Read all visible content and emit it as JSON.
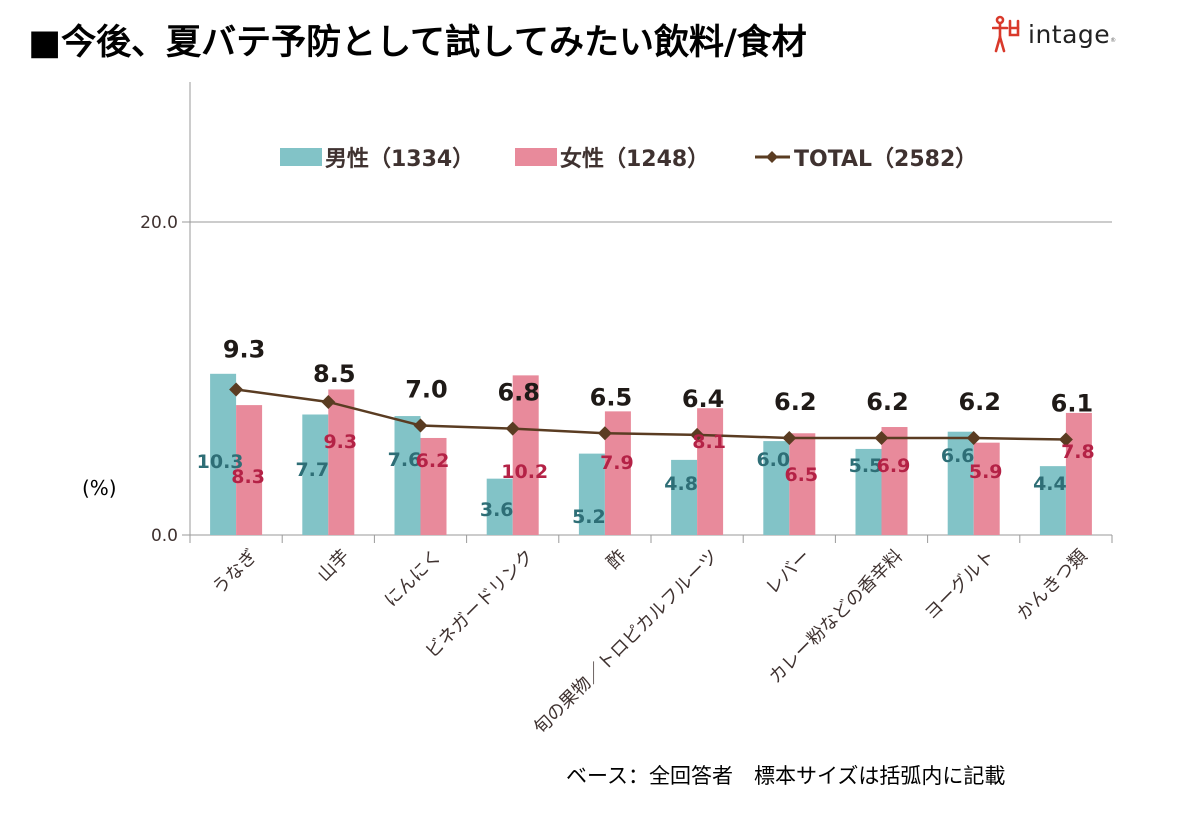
{
  "header": {
    "title": "■今後、夏バテ予防として試してみたい飲料/食材",
    "logo_text": "intage",
    "logo_mark": "娠"
  },
  "footnote": "ベース：全回答者　標本サイズは括弧内に記載",
  "colors": {
    "male": "#82c3c7",
    "female": "#e88a9b",
    "total": "#5a3c22",
    "male_label": "#2e6e76",
    "female_label": "#b42246",
    "axis": "#9a9a9a",
    "logo_red": "#d9392b"
  },
  "chart_data": {
    "type": "bar",
    "title": "今後、夏バテ予防として試してみたい飲料/食材",
    "ylabel": "(%)",
    "xlabel": "",
    "ylim": [
      0,
      20
    ],
    "yticks": [
      "0.0",
      "20.0"
    ],
    "ytick_values": [
      0,
      20
    ],
    "grid": false,
    "legend_position": "top-center",
    "categories": [
      "うなぎ",
      "山芋",
      "にんにく",
      "ビネガードリンク",
      "酢",
      "旬の果物／トロピカルフルーツ",
      "レバー",
      "カレー粉などの香辛料",
      "ヨーグルト",
      "かんきつ類"
    ],
    "series": [
      {
        "name": "男性（1334）",
        "kind": "bar",
        "values": [
          10.3,
          7.7,
          7.6,
          3.6,
          5.2,
          4.8,
          6.0,
          5.5,
          6.6,
          4.4
        ],
        "labels": [
          "10.3",
          "7.7",
          "7.6",
          "3.6",
          "5.2",
          "4.8",
          "6.0",
          "5.5",
          "6.6",
          "4.4"
        ]
      },
      {
        "name": "女性（1248）",
        "kind": "bar",
        "values": [
          8.3,
          9.3,
          6.2,
          10.2,
          7.9,
          8.1,
          6.5,
          6.9,
          5.9,
          7.8
        ],
        "labels": [
          "8.3",
          "9.3",
          "6.2",
          "10.2",
          "7.9",
          "8.1",
          "6.5",
          "6.9",
          "5.9",
          "7.8"
        ]
      },
      {
        "name": "TOTAL（2582）",
        "kind": "line",
        "values": [
          9.3,
          8.5,
          7.0,
          6.8,
          6.5,
          6.4,
          6.2,
          6.2,
          6.2,
          6.1
        ],
        "labels": [
          "9.3",
          "8.5",
          "7.0",
          "6.8",
          "6.5",
          "6.4",
          "6.2",
          "6.2",
          "6.2",
          "6.1"
        ]
      }
    ]
  }
}
